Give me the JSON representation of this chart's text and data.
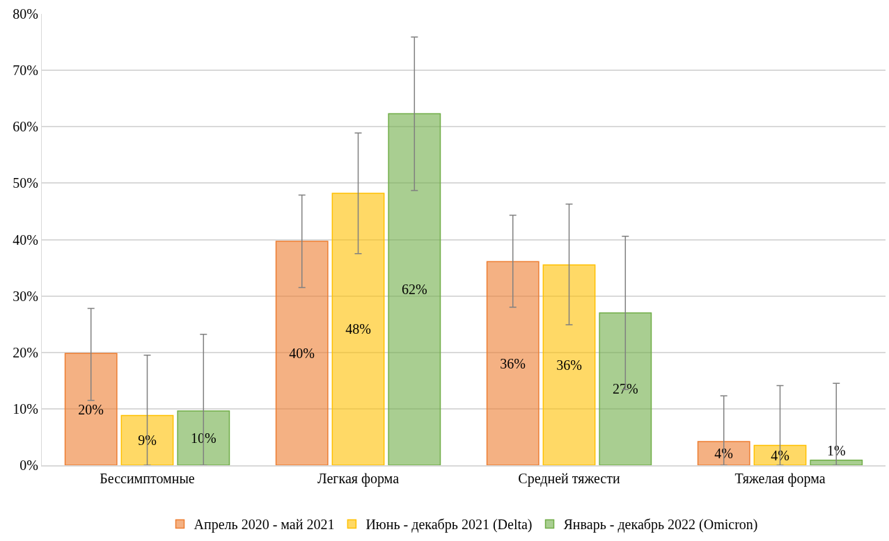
{
  "chart_data": {
    "type": "bar",
    "categories": [
      "Бессимптомные",
      "Легкая форма",
      "Средней тяжести",
      "Тяжелая форма"
    ],
    "series": [
      {
        "name": "Апрель 2020 - май 2021",
        "color": "#ed7d31",
        "values": [
          19.8,
          39.7,
          36.1,
          4.2
        ],
        "value_labels": [
          "20%",
          "40%",
          "36%",
          "4%"
        ],
        "errors": [
          [
            11.5,
            27.8
          ],
          [
            31.5,
            47.9
          ],
          [
            28.0,
            44.3
          ],
          [
            0,
            12.3
          ]
        ]
      },
      {
        "name": "Июнь - декабрь 2021 (Delta)",
        "color": "#ffc000",
        "values": [
          8.8,
          48.2,
          35.5,
          3.5
        ],
        "value_labels": [
          "9%",
          "48%",
          "36%",
          "4%"
        ],
        "errors": [
          [
            0,
            19.5
          ],
          [
            37.5,
            58.9
          ],
          [
            24.9,
            46.3
          ],
          [
            0,
            14.1
          ]
        ]
      },
      {
        "name": "Январь - декабрь 2022 (Omicron)",
        "color": "#70ad47",
        "values": [
          9.6,
          62.3,
          27.0,
          0.9
        ],
        "value_labels": [
          "10%",
          "62%",
          "27%",
          "1%"
        ],
        "errors": [
          [
            0,
            23.2
          ],
          [
            48.7,
            75.9
          ],
          [
            13.4,
            40.6
          ],
          [
            0,
            14.5
          ]
        ]
      }
    ],
    "ylim": [
      0,
      80
    ],
    "yticks": [
      {
        "value": 0,
        "label": "0%"
      },
      {
        "value": 10,
        "label": "10%"
      },
      {
        "value": 20,
        "label": "20%"
      },
      {
        "value": 30,
        "label": "30%"
      },
      {
        "value": 40,
        "label": "40%"
      },
      {
        "value": 50,
        "label": "50%"
      },
      {
        "value": 60,
        "label": "60%"
      },
      {
        "value": 70,
        "label": "70%"
      },
      {
        "value": 80,
        "label": "80%"
      }
    ],
    "grid": "y",
    "legend": "bottom"
  }
}
